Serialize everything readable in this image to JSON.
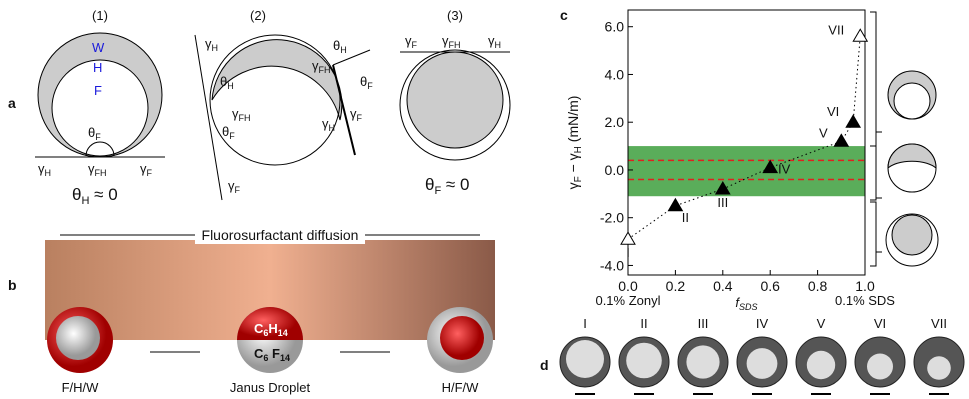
{
  "panels": {
    "a": {
      "letter": "a",
      "sub1": {
        "num": "(1)",
        "w": "W",
        "h": "H",
        "f": "F",
        "theta": {
          "main": "θ",
          "sub": "F"
        },
        "g1": {
          "main": "γ",
          "sub": "H"
        },
        "g2": {
          "main": "γ",
          "sub": "FH"
        },
        "g3": {
          "main": "γ",
          "sub": "F"
        },
        "cond": {
          "main": "θ",
          "sub": "H",
          "rest": " ≈ 0"
        }
      },
      "sub2": {
        "num": "(2)",
        "gh": {
          "main": "γ",
          "sub": "H"
        },
        "th": {
          "main": "θ",
          "sub": "H"
        },
        "gfh": {
          "main": "γ",
          "sub": "FH"
        },
        "tf": {
          "main": "θ",
          "sub": "F"
        },
        "gf": {
          "main": "γ",
          "sub": "F"
        },
        "v_gfh": {
          "main": "γ",
          "sub": "FH"
        },
        "v_th": {
          "main": "θ",
          "sub": "H"
        },
        "v_tf": {
          "main": "θ",
          "sub": "F"
        },
        "v_gh": {
          "main": "γ",
          "sub": "H"
        },
        "v_gf": {
          "main": "γ",
          "sub": "F"
        }
      },
      "sub3": {
        "num": "(3)",
        "g1": {
          "main": "γ",
          "sub": "F"
        },
        "g2": {
          "main": "γ",
          "sub": "FH"
        },
        "g3": {
          "main": "γ",
          "sub": "H"
        },
        "cond": {
          "main": "θ",
          "sub": "F",
          "rest": " ≈ 0"
        }
      }
    },
    "b": {
      "letter": "b",
      "arrow_text": "Fluorosurfactant diffusion",
      "left": "F/H/W",
      "middle": "Janus Droplet",
      "right": "H/F/W",
      "top_formula": {
        "a": "C",
        "b": "6",
        "c": "H",
        "d": "14"
      },
      "bottom_formula": {
        "a": "C",
        "b": "6",
        "c": " F",
        "d": "14"
      }
    },
    "c": {
      "letter": "c"
    },
    "d": {
      "letter": "d",
      "labels": [
        "I",
        "II",
        "III",
        "IV",
        "V",
        "VI",
        "VII"
      ]
    }
  },
  "chart_data": {
    "type": "scatter",
    "y_label": {
      "main1": "γ",
      "sub1": "F",
      "mid": " − γ",
      "sub2": "H",
      "rest": " (mN/m)"
    },
    "x_label": {
      "main": "f",
      "sub": "SDS"
    },
    "x_left_note": "0.1% Zonyl",
    "x_right_note": "0.1% SDS",
    "x": [
      0.0,
      0.2,
      0.4,
      0.6,
      0.9,
      0.95,
      0.98
    ],
    "values": [
      -2.9,
      -1.5,
      -0.8,
      0.1,
      1.2,
      2.0,
      5.6
    ],
    "point_labels": [
      "I",
      "II",
      "III",
      "IV",
      "V",
      "VI",
      "VII"
    ],
    "filled": [
      false,
      true,
      true,
      true,
      true,
      true,
      false
    ],
    "xlim": [
      0,
      1
    ],
    "ylim": [
      -4.4,
      6.7
    ],
    "xticks": [
      {
        "value": 0,
        "label": "0.0"
      },
      {
        "value": 0.2,
        "label": "0.2"
      },
      {
        "value": 0.4,
        "label": "0.4"
      },
      {
        "value": 0.6,
        "label": "0.6"
      },
      {
        "value": 0.8,
        "label": "0.8"
      },
      {
        "value": 1,
        "label": "1.0"
      }
    ],
    "yticks": [
      {
        "value": -4,
        "label": "-4.0"
      },
      {
        "value": -2,
        "label": "-2.0"
      },
      {
        "value": 0,
        "label": "0.0"
      },
      {
        "value": 2,
        "label": "2.0"
      },
      {
        "value": 4,
        "label": "4.0"
      },
      {
        "value": 6,
        "label": "6.0"
      }
    ],
    "band": [
      -1.1,
      1.0
    ],
    "band_color": "#5aad5a",
    "dashed_lines": [
      -0.4,
      0.4
    ],
    "dashed_color": "#e02020",
    "marker_color": "#000"
  }
}
